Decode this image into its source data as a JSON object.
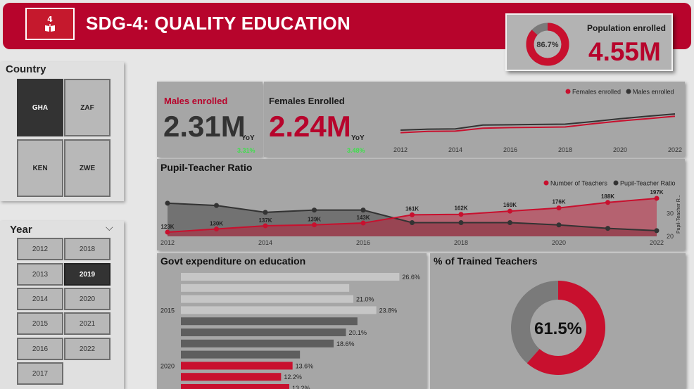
{
  "header": {
    "title": "SDG-4: QUALITY EDUCATION",
    "logo_number": "4",
    "accent": "#b7042c"
  },
  "population": {
    "label": "Population enrolled",
    "value": "4.55M",
    "pct": "86.7%",
    "pct_value": 86.7
  },
  "country_filter": {
    "title": "Country",
    "options": [
      {
        "label": "GHA",
        "selected": true
      },
      {
        "label": "ZAF",
        "selected": false
      },
      {
        "label": "KEN",
        "selected": false
      },
      {
        "label": "ZWE",
        "selected": false
      }
    ]
  },
  "year_filter": {
    "title": "Year",
    "chevron": "⌵",
    "options": [
      {
        "label": "2012",
        "selected": false
      },
      {
        "label": "2018",
        "selected": false
      },
      {
        "label": "2013",
        "selected": false
      },
      {
        "label": "2019",
        "selected": true
      },
      {
        "label": "2014",
        "selected": false
      },
      {
        "label": "2020",
        "selected": false
      },
      {
        "label": "2015",
        "selected": false
      },
      {
        "label": "2021",
        "selected": false
      },
      {
        "label": "2016",
        "selected": false
      },
      {
        "label": "2022",
        "selected": false
      },
      {
        "label": "2017",
        "selected": false
      }
    ]
  },
  "males": {
    "label": "Males enrolled",
    "value": "2.31M",
    "yoy_label": "YoY",
    "yoy": "3.31%"
  },
  "females": {
    "label": "Females Enrolled",
    "value": "2.24M",
    "yoy_label": "YoY",
    "yoy": "3.48%"
  },
  "chart_data": [
    {
      "type": "line",
      "x": [
        2012,
        2013,
        2014,
        2015,
        2016,
        2017,
        2018,
        2019,
        2020,
        2021,
        2022
      ],
      "x_ticks": [
        "2012",
        "2014",
        "2016",
        "2018",
        "2020",
        "2022"
      ],
      "legend": "top-right",
      "series": [
        {
          "name": "Females enrolled",
          "color": "#c8102e",
          "values": [
            1.72,
            1.76,
            1.77,
            1.86,
            1.88,
            1.89,
            1.9,
            2.0,
            2.09,
            2.16,
            2.24
          ]
        },
        {
          "name": "Males enrolled",
          "color": "#333333",
          "values": [
            1.8,
            1.83,
            1.84,
            1.96,
            1.97,
            1.98,
            1.99,
            2.07,
            2.16,
            2.24,
            2.31
          ]
        }
      ]
    },
    {
      "type": "area",
      "title": "Pupil-Teacher Ratio",
      "x": [
        2012,
        2013,
        2014,
        2015,
        2016,
        2017,
        2018,
        2019,
        2020,
        2021,
        2022
      ],
      "x_ticks": [
        "2012",
        "2014",
        "2016",
        "2018",
        "2020",
        "2022"
      ],
      "legend": "top-right",
      "series": [
        {
          "name": "Number of Teachers",
          "color": "#c8102e",
          "values": [
            123,
            130,
            137,
            139,
            143,
            161,
            162,
            169,
            176,
            188,
            197
          ],
          "labels": [
            "123K",
            "130K",
            "137K",
            "139K",
            "143K",
            "161K",
            "162K",
            "169K",
            "176K",
            "188K",
            "197K"
          ]
        },
        {
          "name": "Pupil-Teacher Ratio",
          "color": "#333333",
          "values": [
            34.5,
            33.5,
            30.5,
            31.5,
            31.5,
            26.0,
            26.0,
            26.0,
            25.0,
            23.5,
            22.5
          ]
        }
      ],
      "y2_label": "Pupil-Teacher R...",
      "y2_ticks": [
        "20",
        "30"
      ],
      "y2lim": [
        20,
        38
      ]
    },
    {
      "type": "bar",
      "title": "Govt expenditure on education",
      "orientation": "horizontal",
      "y_labels": [
        "",
        "",
        "",
        "2015",
        "",
        "",
        "",
        "",
        "2020",
        "",
        ""
      ],
      "values": [
        26.6,
        20.5,
        21.0,
        23.8,
        21.5,
        20.1,
        18.6,
        14.5,
        13.6,
        12.2,
        13.2
      ],
      "labels": [
        "26.6%",
        "",
        "21.0%",
        "23.8%",
        "",
        "20.1%",
        "18.6%",
        "",
        "13.6%",
        "12.2%",
        "13.2%"
      ],
      "colors": [
        "#c6c6c6",
        "#c6c6c6",
        "#c6c6c6",
        "#c6c6c6",
        "#5e5e5e",
        "#5e5e5e",
        "#5e5e5e",
        "#5e5e5e",
        "#c8102e",
        "#c8102e",
        "#c8102e"
      ],
      "xlim": [
        0,
        30
      ]
    },
    {
      "type": "pie",
      "title": "% of Trained Teachers",
      "center_label": "61.5%",
      "slices": [
        {
          "value": 61.5,
          "color": "#c8102e"
        },
        {
          "value": 38.5,
          "color": "#7a7a7a"
        }
      ]
    }
  ]
}
